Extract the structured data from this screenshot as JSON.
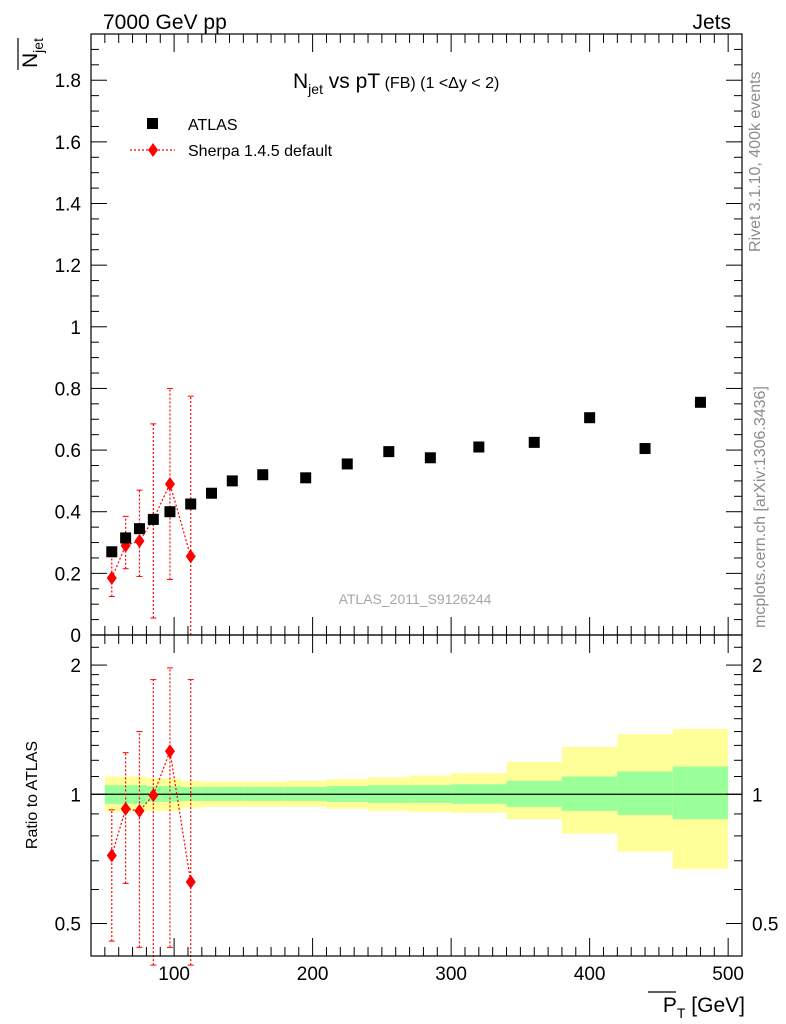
{
  "header": {
    "left": "7000 GeV pp",
    "right": "Jets",
    "side_top": "Rivet 3.1.10,  400k events",
    "side_bottom": "mcplots.cern.ch [arXiv:1306.3436]",
    "watermark": "ATLAS_2011_S9126244"
  },
  "colors": {
    "data": "#000000",
    "mc": "#ff0000",
    "band_inner": "#99ff99",
    "band_outer": "#ffff99"
  },
  "chart_data": [
    {
      "type": "scatter",
      "title": "N_jet vs pT (FB) (1 < Δy < 2)",
      "title_parts": {
        "n": "N",
        "jet": "jet",
        "vs": " vs pT",
        "fb": " (FB)",
        "range": " (1 <Δy < 2)"
      },
      "ylabel": "N_jet (mean)",
      "ylabel_parts": {
        "n": "N",
        "jet": "jet"
      },
      "xlim": [
        40,
        510
      ],
      "ylim": [
        0,
        1.95
      ],
      "yticks": [
        "0",
        "0.2",
        "0.4",
        "0.6",
        "0.8",
        "1",
        "1.2",
        "1.4",
        "1.6",
        "1.8"
      ],
      "legend": [
        {
          "label": "ATLAS"
        },
        {
          "label": "Sherpa 1.4.5 default"
        }
      ],
      "series": [
        {
          "name": "ATLAS",
          "x": [
            55,
            65,
            75,
            85,
            97,
            112,
            127,
            142,
            164,
            195,
            225,
            255,
            285,
            320,
            360,
            400,
            440,
            480
          ],
          "y": [
            0.27,
            0.315,
            0.345,
            0.375,
            0.4,
            0.425,
            0.46,
            0.5,
            0.52,
            0.51,
            0.555,
            0.595,
            0.575,
            0.61,
            0.625,
            0.705,
            0.605,
            0.755
          ]
        },
        {
          "name": "Sherpa 1.4.5 default",
          "x": [
            55,
            65,
            75,
            85,
            97,
            112
          ],
          "y": [
            0.185,
            0.29,
            0.305,
            0.375,
            0.49,
            0.255
          ],
          "y_low": [
            0.125,
            0.215,
            0.19,
            0.055,
            0.18,
            0.0
          ],
          "y_high": [
            0.255,
            0.385,
            0.47,
            0.685,
            0.8,
            0.775
          ]
        }
      ]
    },
    {
      "type": "scatter",
      "title": "",
      "ylabel": "Ratio to ATLAS",
      "xlabel": "P_T [GeV]",
      "xlabel_parts": {
        "p": "P",
        "t": "T",
        "unit": " [GeV]"
      },
      "xlim": [
        40,
        510
      ],
      "ylim": [
        0.42,
        2.35
      ],
      "log_y": true,
      "yticks": [
        "0.5",
        "1",
        "2"
      ],
      "xticks": [
        "100",
        "200",
        "300",
        "400",
        "500"
      ],
      "bands": {
        "edges": [
          50,
          60,
          70,
          80,
          90,
          105,
          120,
          135,
          150,
          180,
          210,
          240,
          270,
          300,
          340,
          380,
          420,
          460,
          500
        ],
        "inner_low": [
          0.95,
          0.95,
          0.95,
          0.96,
          0.96,
          0.965,
          0.965,
          0.965,
          0.965,
          0.965,
          0.96,
          0.955,
          0.955,
          0.95,
          0.935,
          0.915,
          0.895,
          0.875
        ],
        "inner_high": [
          1.05,
          1.05,
          1.05,
          1.045,
          1.045,
          1.04,
          1.04,
          1.04,
          1.04,
          1.04,
          1.045,
          1.05,
          1.05,
          1.055,
          1.075,
          1.1,
          1.13,
          1.16
        ],
        "outer_low": [
          0.91,
          0.91,
          0.91,
          0.915,
          0.915,
          0.93,
          0.935,
          0.935,
          0.935,
          0.935,
          0.925,
          0.915,
          0.91,
          0.905,
          0.875,
          0.81,
          0.735,
          0.67
        ],
        "outer_high": [
          1.1,
          1.1,
          1.1,
          1.09,
          1.09,
          1.075,
          1.07,
          1.07,
          1.07,
          1.075,
          1.085,
          1.095,
          1.105,
          1.12,
          1.19,
          1.29,
          1.38,
          1.42
        ]
      },
      "series": [
        {
          "name": "Sherpa 1.4.5 default",
          "x": [
            55,
            65,
            75,
            85,
            97,
            112
          ],
          "y": [
            0.72,
            0.925,
            0.915,
            0.995,
            1.26,
            0.625
          ],
          "y_low": [
            0.455,
            0.62,
            0.44,
            0.4,
            0.44,
            0.4
          ],
          "y_high": [
            0.92,
            1.25,
            1.4,
            1.85,
            1.97,
            1.85
          ]
        }
      ]
    }
  ]
}
